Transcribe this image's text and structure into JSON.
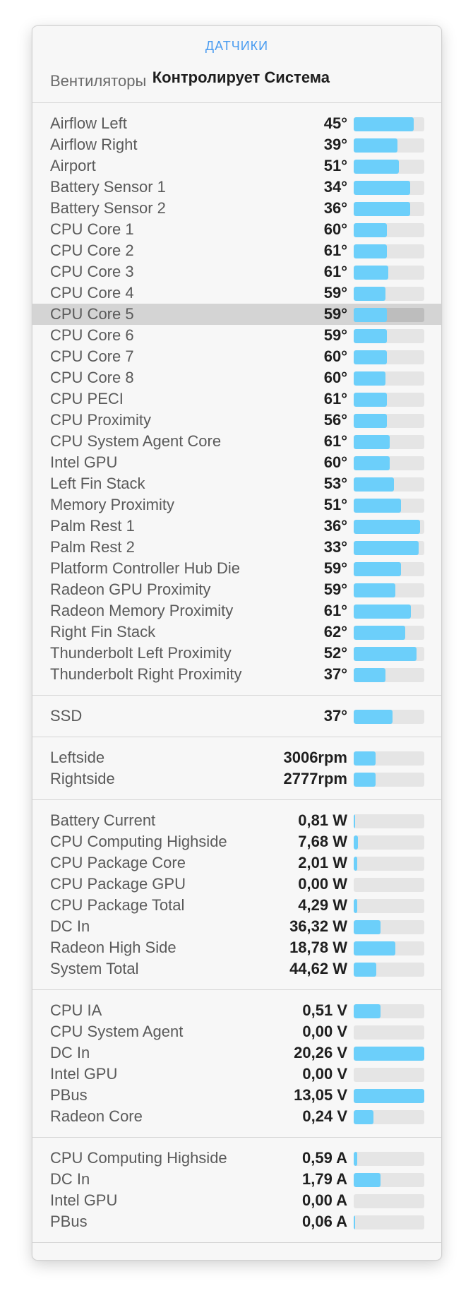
{
  "title": "ДАТЧИКИ",
  "fans_control": {
    "label": "Вентиляторы",
    "value": "Контролирует Система"
  },
  "accent_color": "#6ccffa",
  "sections": [
    {
      "id": "temperatures",
      "rows": [
        {
          "name": "Airflow Left",
          "value": "45°",
          "bar": 0.85
        },
        {
          "name": "Airflow Right",
          "value": "39°",
          "bar": 0.62
        },
        {
          "name": "Airport",
          "value": "51°",
          "bar": 0.64
        },
        {
          "name": "Battery Sensor 1",
          "value": "34°",
          "bar": 0.8
        },
        {
          "name": "Battery Sensor 2",
          "value": "36°",
          "bar": 0.8
        },
        {
          "name": "CPU Core 1",
          "value": "60°",
          "bar": 0.47
        },
        {
          "name": "CPU Core 2",
          "value": "61°",
          "bar": 0.47
        },
        {
          "name": "CPU Core 3",
          "value": "61°",
          "bar": 0.49
        },
        {
          "name": "CPU Core 4",
          "value": "59°",
          "bar": 0.45
        },
        {
          "name": "CPU Core 5",
          "value": "59°",
          "bar": 0.47,
          "selected": true
        },
        {
          "name": "CPU Core 6",
          "value": "59°",
          "bar": 0.47
        },
        {
          "name": "CPU Core 7",
          "value": "60°",
          "bar": 0.47
        },
        {
          "name": "CPU Core 8",
          "value": "60°",
          "bar": 0.45
        },
        {
          "name": "CPU PECI",
          "value": "61°",
          "bar": 0.47
        },
        {
          "name": "CPU Proximity",
          "value": "56°",
          "bar": 0.47
        },
        {
          "name": "CPU System Agent Core",
          "value": "61°",
          "bar": 0.51
        },
        {
          "name": "Intel GPU",
          "value": "60°",
          "bar": 0.51
        },
        {
          "name": "Left Fin Stack",
          "value": "53°",
          "bar": 0.57
        },
        {
          "name": "Memory Proximity",
          "value": "51°",
          "bar": 0.67
        },
        {
          "name": "Palm Rest 1",
          "value": "36°",
          "bar": 0.94
        },
        {
          "name": "Palm Rest 2",
          "value": "33°",
          "bar": 0.92
        },
        {
          "name": "Platform Controller Hub Die",
          "value": "59°",
          "bar": 0.67
        },
        {
          "name": "Radeon GPU Proximity",
          "value": "59°",
          "bar": 0.59
        },
        {
          "name": "Radeon Memory Proximity",
          "value": "61°",
          "bar": 0.81
        },
        {
          "name": "Right Fin Stack",
          "value": "62°",
          "bar": 0.73
        },
        {
          "name": "Thunderbolt Left Proximity",
          "value": "52°",
          "bar": 0.89
        },
        {
          "name": "Thunderbolt Right Proximity",
          "value": "37°",
          "bar": 0.45
        }
      ]
    },
    {
      "id": "ssd",
      "rows": [
        {
          "name": "SSD",
          "value": "37°",
          "bar": 0.55
        }
      ]
    },
    {
      "id": "fans",
      "rows": [
        {
          "name": "Leftside",
          "value": "3006rpm",
          "bar": 0.31
        },
        {
          "name": "Rightside",
          "value": "2777rpm",
          "bar": 0.31
        }
      ]
    },
    {
      "id": "power",
      "rows": [
        {
          "name": "Battery Current",
          "value": "0,81 W",
          "bar": 0.02
        },
        {
          "name": "CPU Computing Highside",
          "value": "7,68 W",
          "bar": 0.06
        },
        {
          "name": "CPU Package Core",
          "value": "2,01 W",
          "bar": 0.05
        },
        {
          "name": "CPU Package GPU",
          "value": "0,00 W",
          "bar": 0.0
        },
        {
          "name": "CPU Package Total",
          "value": "4,29 W",
          "bar": 0.05
        },
        {
          "name": "DC In",
          "value": "36,32 W",
          "bar": 0.38
        },
        {
          "name": "Radeon High Side",
          "value": "18,78 W",
          "bar": 0.59
        },
        {
          "name": "System Total",
          "value": "44,62 W",
          "bar": 0.32
        }
      ]
    },
    {
      "id": "voltage",
      "rows": [
        {
          "name": "CPU IA",
          "value": "0,51 V",
          "bar": 0.38
        },
        {
          "name": "CPU System Agent",
          "value": "0,00 V",
          "bar": 0.0
        },
        {
          "name": "DC In",
          "value": "20,26 V",
          "bar": 1.0
        },
        {
          "name": "Intel GPU",
          "value": "0,00 V",
          "bar": 0.0
        },
        {
          "name": "PBus",
          "value": "13,05 V",
          "bar": 1.0
        },
        {
          "name": "Radeon Core",
          "value": "0,24 V",
          "bar": 0.28
        }
      ]
    },
    {
      "id": "current",
      "rows": [
        {
          "name": "CPU Computing Highside",
          "value": "0,59 A",
          "bar": 0.05
        },
        {
          "name": "DC In",
          "value": "1,79 A",
          "bar": 0.38
        },
        {
          "name": "Intel GPU",
          "value": "0,00 A",
          "bar": 0.0
        },
        {
          "name": "PBus",
          "value": "0,06 A",
          "bar": 0.02
        }
      ]
    }
  ]
}
